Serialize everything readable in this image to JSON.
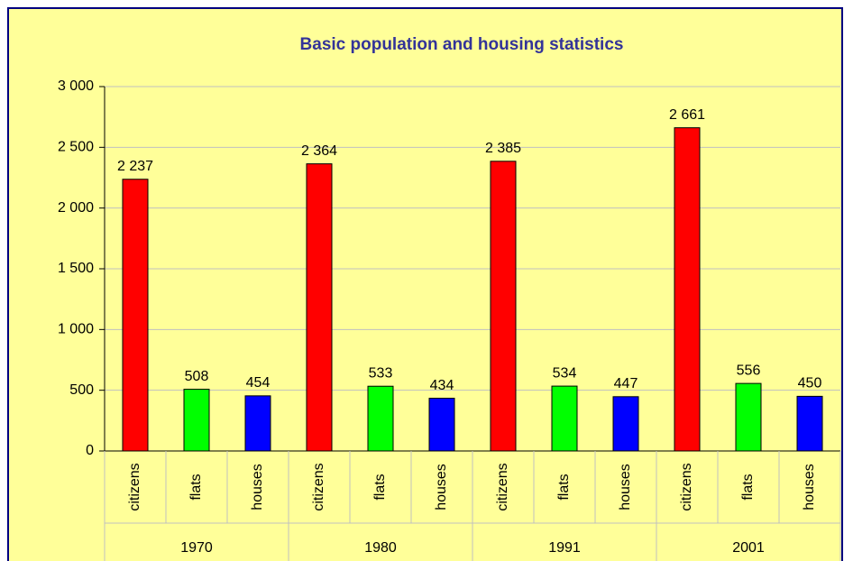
{
  "chart_data": {
    "type": "bar",
    "title": "Basic population and housing statistics",
    "categories": [
      "1970",
      "1980",
      "1991",
      "2001"
    ],
    "series": [
      {
        "name": "citizens",
        "color": "#ff0000",
        "values": [
          2237,
          2364,
          2385,
          2661
        ],
        "value_labels": [
          "2 237",
          "2 364",
          "2 385",
          "2 661"
        ]
      },
      {
        "name": "flats",
        "color": "#00ff00",
        "values": [
          508,
          533,
          534,
          556
        ]
      },
      {
        "name": "houses",
        "color": "#0000ff",
        "values": [
          454,
          434,
          447,
          450
        ]
      }
    ],
    "ylim": [
      0,
      3000
    ],
    "yticks": [
      0,
      500,
      {
        "value": 1000,
        "label": "1 000"
      },
      {
        "value": 1500,
        "label": "1 500"
      },
      {
        "value": 2000,
        "label": "2 000"
      },
      {
        "value": 2500,
        "label": "2 500"
      },
      {
        "value": 3000,
        "label": "3 000"
      }
    ],
    "grid": true
  }
}
